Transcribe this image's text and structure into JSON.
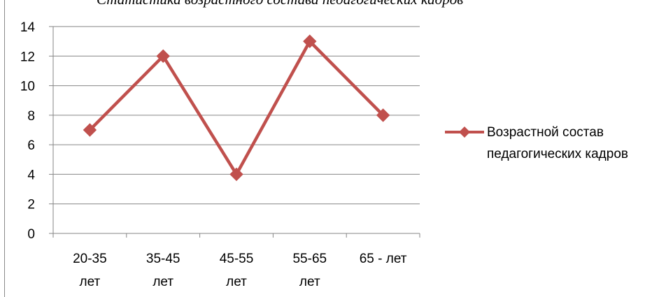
{
  "chart_data": {
    "type": "line",
    "title": "Статистика возрастного состава педагогических кадров",
    "categories": [
      [
        "20-35",
        "лет"
      ],
      [
        "35-45",
        "лет"
      ],
      [
        "45-55",
        "лет"
      ],
      [
        "55-65",
        "лет"
      ],
      [
        "65 - лет"
      ]
    ],
    "series": [
      {
        "name": "Возрастной состав педагогических кадров",
        "values": [
          7,
          12,
          4,
          13,
          8
        ],
        "color": "#c0504d",
        "marker": "diamond"
      }
    ],
    "ylim": [
      0,
      14
    ],
    "yticks": [
      0,
      2,
      4,
      6,
      8,
      10,
      12,
      14
    ],
    "grid": true,
    "legend_position": "right",
    "xlabel": "",
    "ylabel": ""
  }
}
